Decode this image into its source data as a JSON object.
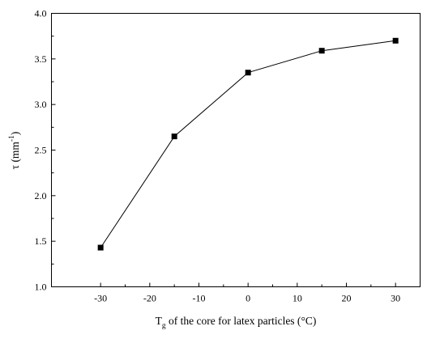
{
  "chart_data": {
    "type": "line",
    "title": "",
    "xlabel": {
      "prefix": "T",
      "subscript": "g",
      "rest": " of the core for latex particles (",
      "unit": "°C",
      "suffix": ")"
    },
    "ylabel": {
      "main": "τ (mm",
      "superscript": "-1",
      "suffix": ")"
    },
    "xlim": [
      -40,
      35
    ],
    "ylim": [
      1.0,
      4.0
    ],
    "xticks": [
      -30,
      -20,
      -10,
      0,
      10,
      20,
      30
    ],
    "xtick_labels": [
      "-30",
      "-20",
      "-10",
      "0",
      "10",
      "20",
      "30"
    ],
    "yticks": [
      1.0,
      1.5,
      2.0,
      2.5,
      3.0,
      3.5,
      4.0
    ],
    "ytick_labels": [
      "1.0",
      "1.5",
      "2.0",
      "2.5",
      "3.0",
      "3.5",
      "4.0"
    ],
    "grid": false,
    "legend": "none",
    "series": [
      {
        "marker": "square",
        "color": "#000000",
        "x": [
          -30,
          -15,
          0,
          15,
          30
        ],
        "y": [
          1.43,
          2.65,
          3.35,
          3.59,
          3.7
        ]
      }
    ]
  }
}
